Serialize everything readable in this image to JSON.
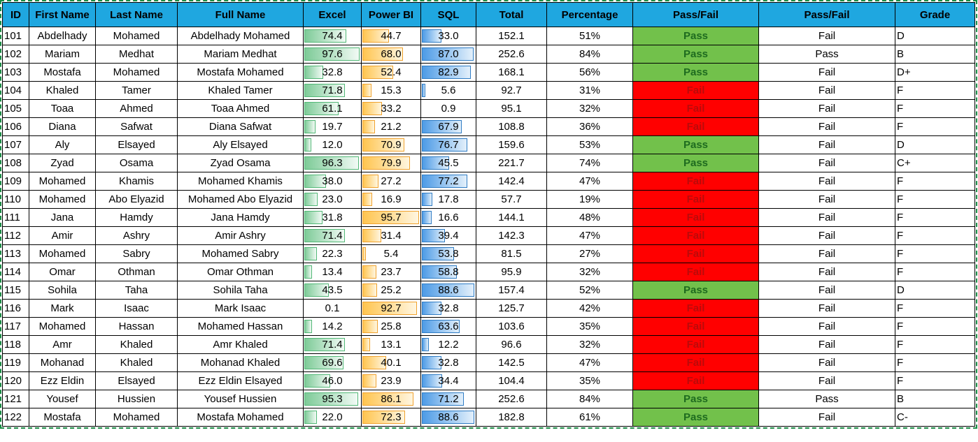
{
  "colors": {
    "header_bg": "#1FA7E0",
    "header_text": "#000000",
    "grid_line": "#000000",
    "pass_bg": "#72C14B",
    "pass_text": "#1E6B1F",
    "fail_bg": "#FF0000",
    "fail_text": "#BB0A0A",
    "marquee_green": "#1C8C46",
    "excel_bar_border": "#53B877",
    "excel_bar_from": "#7ECB98",
    "excel_bar_to": "#F2FAF5",
    "powerbi_bar_border": "#F0A22E",
    "powerbi_bar_from": "#FFC550",
    "powerbi_bar_to": "#FFF6E0",
    "sql_bar_border": "#2F7CC4",
    "sql_bar_from": "#4D9BE6",
    "sql_bar_to": "#E3F0FB"
  },
  "header": {
    "columns": [
      {
        "key": "id",
        "label": "ID"
      },
      {
        "key": "first-name",
        "label": "First Name"
      },
      {
        "key": "last-name",
        "label": "Last Name"
      },
      {
        "key": "full-name",
        "label": "Full Name"
      },
      {
        "key": "excel",
        "label": "Excel"
      },
      {
        "key": "power-bi",
        "label": "Power BI"
      },
      {
        "key": "sql",
        "label": "SQL"
      },
      {
        "key": "total",
        "label": "Total"
      },
      {
        "key": "percentage",
        "label": "Percentage"
      },
      {
        "key": "pass-fail-colored",
        "label": "Pass/Fail"
      },
      {
        "key": "pass-fail",
        "label": "Pass/Fail"
      },
      {
        "key": "grade",
        "label": "Grade"
      }
    ]
  },
  "rows": [
    {
      "id": "101",
      "first_name": "Abdelhady",
      "last_name": "Mohamed",
      "full_name": "Abdelhady Mohamed",
      "excel": "74.4",
      "power_bi": "44.7",
      "sql": "33.0",
      "total": "152.1",
      "percentage": "51%",
      "pass_fail_colored": "Pass",
      "pass_fail": "Fail",
      "grade": "D"
    },
    {
      "id": "102",
      "first_name": "Mariam",
      "last_name": "Medhat",
      "full_name": "Mariam Medhat",
      "excel": "97.6",
      "power_bi": "68.0",
      "sql": "87.0",
      "total": "252.6",
      "percentage": "84%",
      "pass_fail_colored": "Pass",
      "pass_fail": "Pass",
      "grade": "B"
    },
    {
      "id": "103",
      "first_name": "Mostafa",
      "last_name": "Mohamed",
      "full_name": "Mostafa Mohamed",
      "excel": "32.8",
      "power_bi": "52.4",
      "sql": "82.9",
      "total": "168.1",
      "percentage": "56%",
      "pass_fail_colored": "Pass",
      "pass_fail": "Fail",
      "grade": "D+"
    },
    {
      "id": "104",
      "first_name": "Khaled",
      "last_name": "Tamer",
      "full_name": "Khaled Tamer",
      "excel": "71.8",
      "power_bi": "15.3",
      "sql": "5.6",
      "total": "92.7",
      "percentage": "31%",
      "pass_fail_colored": "Fail",
      "pass_fail": "Fail",
      "grade": "F"
    },
    {
      "id": "105",
      "first_name": "Toaa",
      "last_name": "Ahmed",
      "full_name": "Toaa Ahmed",
      "excel": "61.1",
      "power_bi": "33.2",
      "sql": "0.9",
      "total": "95.1",
      "percentage": "32%",
      "pass_fail_colored": "Fail",
      "pass_fail": "Fail",
      "grade": "F"
    },
    {
      "id": "106",
      "first_name": "Diana",
      "last_name": "Safwat",
      "full_name": "Diana Safwat",
      "excel": "19.7",
      "power_bi": "21.2",
      "sql": "67.9",
      "total": "108.8",
      "percentage": "36%",
      "pass_fail_colored": "Fail",
      "pass_fail": "Fail",
      "grade": "F"
    },
    {
      "id": "107",
      "first_name": "Aly",
      "last_name": "Elsayed",
      "full_name": "Aly Elsayed",
      "excel": "12.0",
      "power_bi": "70.9",
      "sql": "76.7",
      "total": "159.6",
      "percentage": "53%",
      "pass_fail_colored": "Pass",
      "pass_fail": "Fail",
      "grade": "D"
    },
    {
      "id": "108",
      "first_name": "Zyad",
      "last_name": "Osama",
      "full_name": "Zyad Osama",
      "excel": "96.3",
      "power_bi": "79.9",
      "sql": "45.5",
      "total": "221.7",
      "percentage": "74%",
      "pass_fail_colored": "Pass",
      "pass_fail": "Fail",
      "grade": "C+"
    },
    {
      "id": "109",
      "first_name": "Mohamed",
      "last_name": "Khamis",
      "full_name": "Mohamed Khamis",
      "excel": "38.0",
      "power_bi": "27.2",
      "sql": "77.2",
      "total": "142.4",
      "percentage": "47%",
      "pass_fail_colored": "Fail",
      "pass_fail": "Fail",
      "grade": "F"
    },
    {
      "id": "110",
      "first_name": "Mohamed",
      "last_name": "Abo Elyazid",
      "full_name": "Mohamed Abo Elyazid",
      "excel": "23.0",
      "power_bi": "16.9",
      "sql": "17.8",
      "total": "57.7",
      "percentage": "19%",
      "pass_fail_colored": "Fail",
      "pass_fail": "Fail",
      "grade": "F"
    },
    {
      "id": "111",
      "first_name": "Jana",
      "last_name": "Hamdy",
      "full_name": "Jana Hamdy",
      "excel": "31.8",
      "power_bi": "95.7",
      "sql": "16.6",
      "total": "144.1",
      "percentage": "48%",
      "pass_fail_colored": "Fail",
      "pass_fail": "Fail",
      "grade": "F"
    },
    {
      "id": "112",
      "first_name": "Amir",
      "last_name": "Ashry",
      "full_name": "Amir Ashry",
      "excel": "71.4",
      "power_bi": "31.4",
      "sql": "39.4",
      "total": "142.3",
      "percentage": "47%",
      "pass_fail_colored": "Fail",
      "pass_fail": "Fail",
      "grade": "F"
    },
    {
      "id": "113",
      "first_name": "Mohamed",
      "last_name": "Sabry",
      "full_name": "Mohamed Sabry",
      "excel": "22.3",
      "power_bi": "5.4",
      "sql": "53.8",
      "total": "81.5",
      "percentage": "27%",
      "pass_fail_colored": "Fail",
      "pass_fail": "Fail",
      "grade": "F"
    },
    {
      "id": "114",
      "first_name": "Omar",
      "last_name": "Othman",
      "full_name": "Omar Othman",
      "excel": "13.4",
      "power_bi": "23.7",
      "sql": "58.8",
      "total": "95.9",
      "percentage": "32%",
      "pass_fail_colored": "Fail",
      "pass_fail": "Fail",
      "grade": "F"
    },
    {
      "id": "115",
      "first_name": "Sohila",
      "last_name": "Taha",
      "full_name": "Sohila Taha",
      "excel": "43.5",
      "power_bi": "25.2",
      "sql": "88.6",
      "total": "157.4",
      "percentage": "52%",
      "pass_fail_colored": "Pass",
      "pass_fail": "Fail",
      "grade": "D"
    },
    {
      "id": "116",
      "first_name": "Mark",
      "last_name": "Isaac",
      "full_name": "Mark Isaac",
      "excel": "0.1",
      "power_bi": "92.7",
      "sql": "32.8",
      "total": "125.7",
      "percentage": "42%",
      "pass_fail_colored": "Fail",
      "pass_fail": "Fail",
      "grade": "F"
    },
    {
      "id": "117",
      "first_name": "Mohamed",
      "last_name": "Hassan",
      "full_name": "Mohamed Hassan",
      "excel": "14.2",
      "power_bi": "25.8",
      "sql": "63.6",
      "total": "103.6",
      "percentage": "35%",
      "pass_fail_colored": "Fail",
      "pass_fail": "Fail",
      "grade": "F"
    },
    {
      "id": "118",
      "first_name": "Amr",
      "last_name": "Khaled",
      "full_name": "Amr Khaled",
      "excel": "71.4",
      "power_bi": "13.1",
      "sql": "12.2",
      "total": "96.6",
      "percentage": "32%",
      "pass_fail_colored": "Fail",
      "pass_fail": "Fail",
      "grade": "F"
    },
    {
      "id": "119",
      "first_name": "Mohanad",
      "last_name": "Khaled",
      "full_name": "Mohanad Khaled",
      "excel": "69.6",
      "power_bi": "40.1",
      "sql": "32.8",
      "total": "142.5",
      "percentage": "47%",
      "pass_fail_colored": "Fail",
      "pass_fail": "Fail",
      "grade": "F"
    },
    {
      "id": "120",
      "first_name": "Ezz Eldin",
      "last_name": "Elsayed",
      "full_name": "Ezz Eldin Elsayed",
      "excel": "46.0",
      "power_bi": "23.9",
      "sql": "34.4",
      "total": "104.4",
      "percentage": "35%",
      "pass_fail_colored": "Fail",
      "pass_fail": "Fail",
      "grade": "F"
    },
    {
      "id": "121",
      "first_name": "Yousef",
      "last_name": "Hussien",
      "full_name": "Yousef Hussien",
      "excel": "95.3",
      "power_bi": "86.1",
      "sql": "71.2",
      "total": "252.6",
      "percentage": "84%",
      "pass_fail_colored": "Pass",
      "pass_fail": "Pass",
      "grade": "B"
    },
    {
      "id": "122",
      "first_name": "Mostafa",
      "last_name": "Mohamed",
      "full_name": "Mostafa Mohamed",
      "excel": "22.0",
      "power_bi": "72.3",
      "sql": "88.6",
      "total": "182.8",
      "percentage": "61%",
      "pass_fail_colored": "Pass",
      "pass_fail": "Fail",
      "grade": "C-"
    }
  ]
}
